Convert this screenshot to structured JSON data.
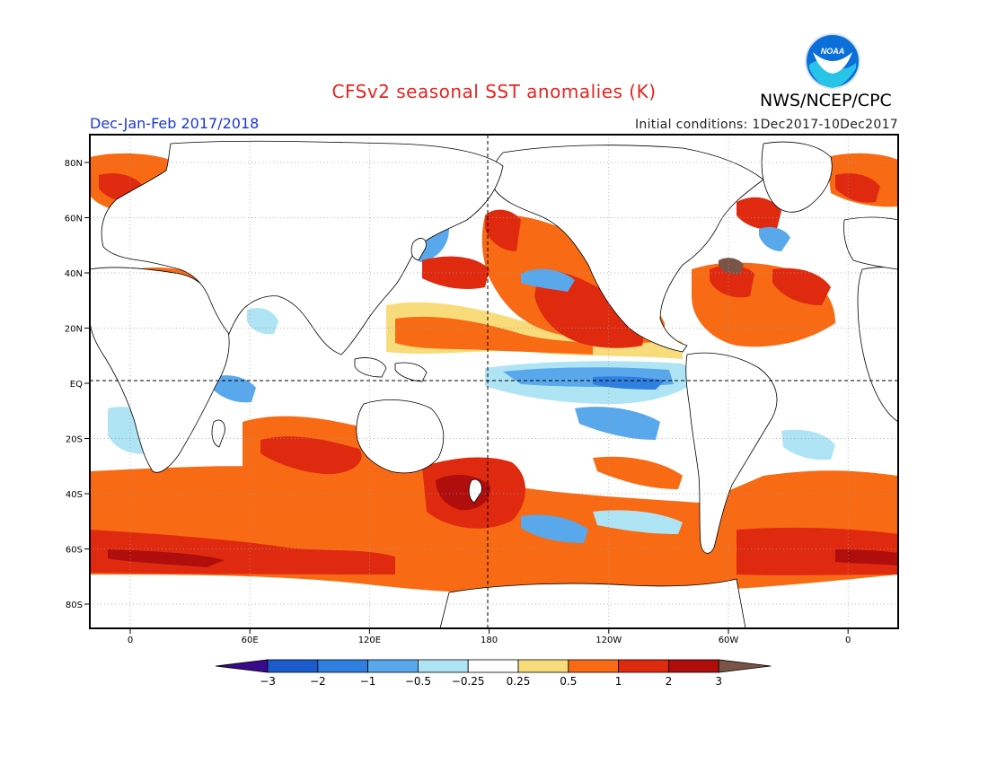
{
  "title": "CFSv2 seasonal SST anomalies (K)",
  "agency": "NWS/NCEP/CPC",
  "period": "Dec-Jan-Feb 2017/2018",
  "initial_conditions": "Initial conditions: 1Dec2017-10Dec2017",
  "logo": {
    "name": "noaa-logo",
    "text": "NOAA"
  },
  "lat_labels": [
    "80N",
    "60N",
    "40N",
    "20N",
    "EQ",
    "20S",
    "40S",
    "60S",
    "80S"
  ],
  "lon_labels": [
    "0",
    "60E",
    "120E",
    "180",
    "120W",
    "60W",
    "0"
  ],
  "colorbar": {
    "labels": [
      "-3",
      "-2",
      "-1",
      "-0.5",
      "-0.25",
      "0.25",
      "0.5",
      "1",
      "2",
      "3"
    ],
    "colors": [
      "#3a0a8c",
      "#1a5ccc",
      "#2f7fe0",
      "#5aa8ec",
      "#aee4f4",
      "#ffffff",
      "#f8db7a",
      "#f86a14",
      "#e02a10",
      "#b00d0d",
      "#7a5447"
    ]
  },
  "colors": {
    "title": "#e8231f",
    "period": "#1a36d8",
    "warm_strong": "#b00d0d",
    "warm": "#e02a10",
    "warm_mid": "#f86a14",
    "warm_weak": "#f8db7a",
    "cool_weak": "#aee4f4",
    "cool": "#5aa8ec",
    "cool_mid": "#2f7fe0",
    "land": "#ffffff",
    "background": "#ffffff"
  }
}
